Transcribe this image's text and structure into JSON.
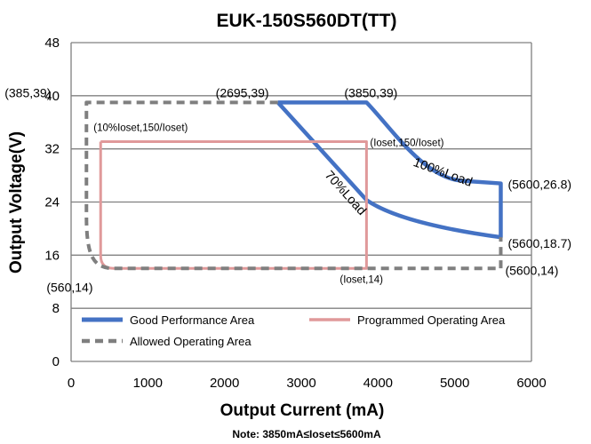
{
  "chart_data": {
    "type": "line",
    "title": "EUK-150S560DT(TT)",
    "xlabel": "Output Current (mA)",
    "ylabel": "Output Voltage(V)",
    "xlim": [
      0,
      6000
    ],
    "ylim": [
      0,
      48
    ],
    "xticks": [
      0,
      1000,
      2000,
      3000,
      4000,
      5000,
      6000
    ],
    "yticks": [
      0,
      8,
      16,
      24,
      32,
      40,
      48
    ],
    "grid": "horizontal",
    "legend_position": "bottom-inside",
    "series": [
      {
        "name": "Good Performance Area",
        "color": "#4472c4",
        "style": "solid",
        "points": [
          [
            2695,
            39
          ],
          [
            3850,
            39
          ],
          [
            4600,
            31
          ],
          [
            5000,
            28.2
          ],
          [
            5600,
            26.8
          ],
          [
            5600,
            18.7
          ],
          [
            4800,
            20.3
          ],
          [
            3850,
            24.3
          ],
          [
            3600,
            26.3
          ],
          [
            2695,
            39
          ]
        ]
      },
      {
        "name": "Programmed Operating Area",
        "color": "#e0999a",
        "style": "solid",
        "points": [
          [
            385,
            33.1
          ],
          [
            3850,
            33.1
          ],
          [
            3850,
            14
          ],
          [
            560,
            14
          ],
          [
            385,
            15.5
          ],
          [
            385,
            33.1
          ]
        ]
      },
      {
        "name": "Allowed Operating Area",
        "color": "#7f7f7f",
        "style": "dashed",
        "points": [
          [
            200,
            39
          ],
          [
            2695,
            39
          ],
          [
            200,
            39
          ],
          [
            200,
            24
          ],
          [
            280,
            17.5
          ],
          [
            420,
            14.8
          ],
          [
            560,
            14
          ],
          [
            5600,
            14
          ],
          [
            5600,
            18.7
          ]
        ]
      }
    ],
    "annotations": [
      {
        "text": "(385,39)",
        "x": 385,
        "y": 39
      },
      {
        "text": "(2695,39)",
        "x": 2695,
        "y": 39
      },
      {
        "text": "(3850,39)",
        "x": 3850,
        "y": 39
      },
      {
        "text": "(10%Ioset,150/Ioset)",
        "x": 385,
        "y": 33.1
      },
      {
        "text": "(Ioset,150/Ioset)",
        "x": 3850,
        "y": 33.1
      },
      {
        "text": "(5600,26.8)",
        "x": 5600,
        "y": 26.8
      },
      {
        "text": "(5600,18.7)",
        "x": 5600,
        "y": 18.7
      },
      {
        "text": "(5600,14)",
        "x": 5600,
        "y": 14
      },
      {
        "text": "(560,14)",
        "x": 560,
        "y": 14
      },
      {
        "text": "(Ioset,14)",
        "x": 3850,
        "y": 14
      },
      {
        "text": "100%Load",
        "x": 4450,
        "y": 29.5
      },
      {
        "text": "70%Load",
        "x": 3300,
        "y": 28
      }
    ],
    "note": "Note:  3850mA≤Ioset≤5600mA"
  }
}
